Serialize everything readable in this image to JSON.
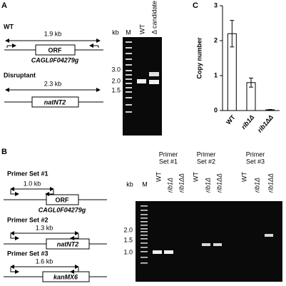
{
  "panel_a": {
    "label": "A",
    "wt_label": "WT",
    "wt_size": "1.9 kb",
    "wt_box": "ORF",
    "wt_gene": "CAGL0F04279g",
    "disruptant_label": "Disruptant",
    "disruptant_size": "2.3 kb",
    "disruptant_box": "natNT2",
    "gel": {
      "kb": "kb",
      "lanes": [
        "M",
        "WT",
        "Δ candidate"
      ],
      "markers": [
        "3.0",
        "2.0",
        "1.5"
      ]
    }
  },
  "panel_b": {
    "label": "B",
    "primer_sets": [
      {
        "name": "Primer Set #1",
        "size": "1.0 kb",
        "box": "ORF",
        "gene": "CAGL0F04279g"
      },
      {
        "name": "Primer Set #2",
        "size": "1.3 kb",
        "box": "natNT2"
      },
      {
        "name": "Primer Set #3",
        "size": "1.6 kb",
        "box": "kanMX6"
      }
    ],
    "gel": {
      "kb": "kb",
      "marker_lane": "M",
      "groups": [
        {
          "header": [
            "Primer",
            "Set #1"
          ],
          "lanes": [
            "WT",
            "rib1Δ",
            "rib1ΔΔ"
          ]
        },
        {
          "header": [
            "Primer",
            "Set #2"
          ],
          "lanes": [
            "WT",
            "rib1Δ",
            "rib1ΔΔ"
          ]
        },
        {
          "header": [
            "Primer",
            "Set #3"
          ],
          "lanes": [
            "WT",
            "rib1Δ",
            "rib1ΔΔ"
          ]
        }
      ],
      "markers": [
        "2.0",
        "1.5",
        "1.0"
      ]
    }
  },
  "chart_data": {
    "type": "bar",
    "label": "C",
    "ylabel": "Copy number",
    "categories": [
      "WT",
      "rib1Δ",
      "rib1ΔΔ"
    ],
    "values": [
      2.2,
      0.8,
      0.02
    ],
    "errors": [
      0.38,
      0.13,
      0.01
    ],
    "color": "#ffffff",
    "ylim": [
      0,
      3
    ],
    "yticks": [
      0,
      1,
      2,
      3
    ]
  }
}
